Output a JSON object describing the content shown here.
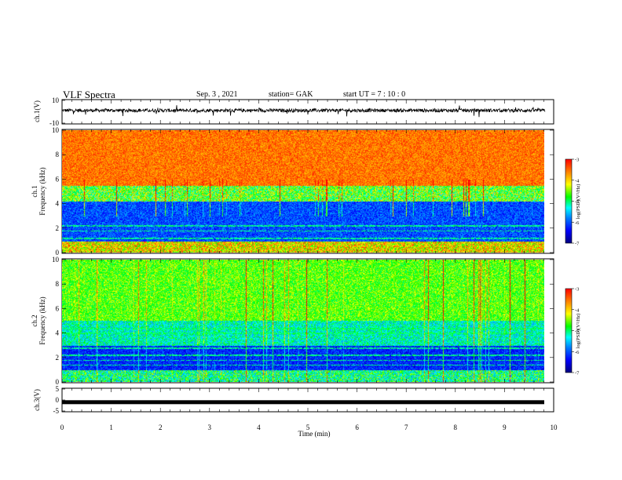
{
  "header": {
    "title": "VLF Spectra",
    "date": "Sep. 3  , 2021",
    "station": "station= GAK",
    "start": "start  UT  =   7 : 10 : 0"
  },
  "chart_data": [
    {
      "type": "line",
      "panel": "ch1_waveform",
      "ylabel": "ch.1(V)",
      "ylim": [
        -10,
        10
      ],
      "yticks": [
        "10",
        "-10"
      ],
      "x_range_min": [
        0,
        9.83
      ],
      "baseline_v": 1.2,
      "noise_amplitude_v": 3
    },
    {
      "type": "heatmap",
      "panel": "ch1_spectrogram",
      "ylabel_line1": "ch.1",
      "ylabel_line2": "Frequency (kHz)",
      "ylim": [
        0,
        10
      ],
      "yticks": [
        "0",
        "2",
        "4",
        "6",
        "8",
        "10"
      ],
      "colorbar": {
        "label": "log(PSD)(V²/Hz)",
        "range": [
          -7,
          -3
        ],
        "ticks": [
          "-3",
          "-4",
          "-5",
          "-6",
          "-7"
        ]
      }
    },
    {
      "type": "heatmap",
      "panel": "ch2_spectrogram",
      "ylabel_line1": "ch.2",
      "ylabel_line2": "Frequency (kHz)",
      "ylim": [
        0,
        10
      ],
      "yticks": [
        "0",
        "2",
        "4",
        "6",
        "8",
        "10"
      ],
      "colorbar": {
        "label": "log(PSD)(V²/Hz)",
        "range": [
          -7,
          -3
        ],
        "ticks": [
          "-3",
          "-4",
          "-5",
          "-6",
          "-7"
        ]
      }
    },
    {
      "type": "line",
      "panel": "ch3_waveform",
      "ylabel": "ch.3(V)",
      "ylim": [
        -5,
        5
      ],
      "yticks": [
        "5",
        "0",
        "-5"
      ],
      "constant_value_v": -1,
      "xlabel": "Time  (min)",
      "xlim": [
        0,
        10
      ],
      "xticks": [
        "0",
        "1",
        "2",
        "3",
        "4",
        "5",
        "6",
        "7",
        "8",
        "9",
        "10"
      ]
    }
  ],
  "colors": {
    "axes": "#000000",
    "trace": "#000000",
    "colormap": [
      "#00007f",
      "#0000ff",
      "#0080ff",
      "#00ffff",
      "#00ff00",
      "#ffff00",
      "#ff8000",
      "#ff0000"
    ]
  }
}
